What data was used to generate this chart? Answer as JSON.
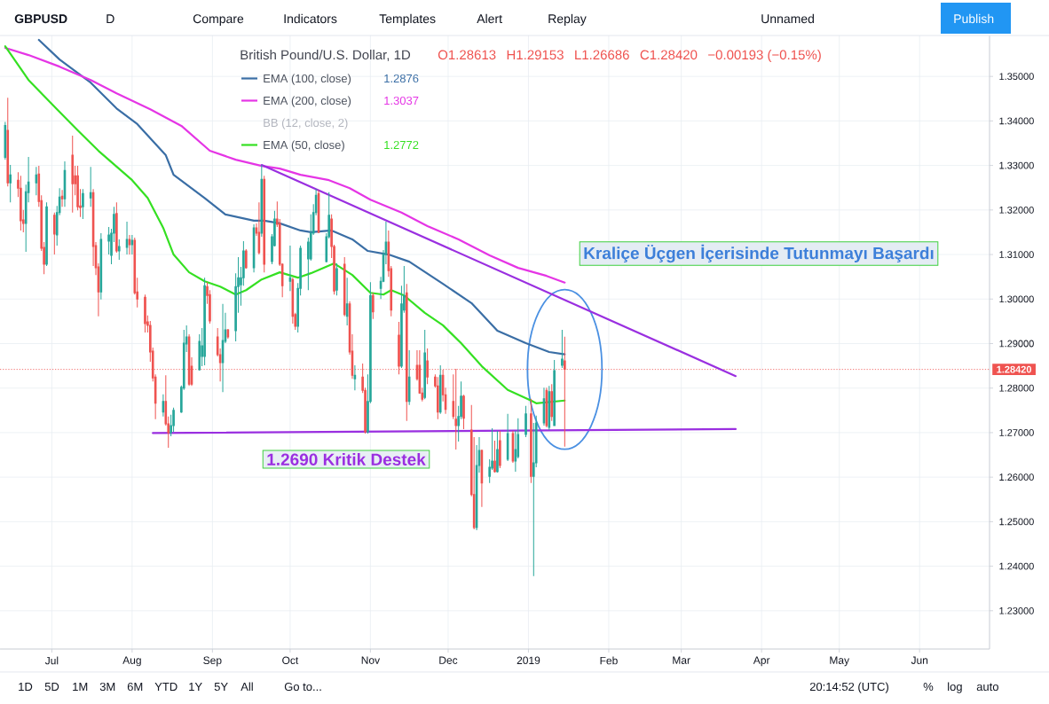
{
  "chart_data": {
    "type": "candlestick",
    "title": "British Pound/U.S. Dollar, 1D",
    "x": [
      "2018-06-13",
      "2018-06-14",
      "2018-06-15",
      "2018-06-18",
      "2018-06-19",
      "2018-06-20",
      "2018-06-21",
      "2018-06-22",
      "2018-06-25",
      "2018-06-26",
      "2018-06-27",
      "2018-06-28",
      "2018-06-29",
      "2018-07-02",
      "2018-07-03",
      "2018-07-04",
      "2018-07-05",
      "2018-07-06",
      "2018-07-09",
      "2018-07-10",
      "2018-07-11",
      "2018-07-12",
      "2018-07-13",
      "2018-07-16",
      "2018-07-17",
      "2018-07-18",
      "2018-07-19",
      "2018-07-20",
      "2018-07-23",
      "2018-07-24",
      "2018-07-25",
      "2018-07-26",
      "2018-07-27",
      "2018-07-30",
      "2018-07-31",
      "2018-08-01",
      "2018-08-02",
      "2018-08-03",
      "2018-08-06",
      "2018-08-07",
      "2018-08-08",
      "2018-08-09",
      "2018-08-10",
      "2018-08-13",
      "2018-08-14",
      "2018-08-15",
      "2018-08-16",
      "2018-08-17",
      "2018-08-20",
      "2018-08-21",
      "2018-08-22",
      "2018-08-23",
      "2018-08-24",
      "2018-08-27",
      "2018-08-28",
      "2018-08-29",
      "2018-08-30",
      "2018-08-31",
      "2018-09-03",
      "2018-09-04",
      "2018-09-05",
      "2018-09-06",
      "2018-09-07",
      "2018-09-10",
      "2018-09-11",
      "2018-09-12",
      "2018-09-13",
      "2018-09-14",
      "2018-09-17",
      "2018-09-18",
      "2018-09-19",
      "2018-09-20",
      "2018-09-21",
      "2018-09-24",
      "2018-09-25",
      "2018-09-26",
      "2018-09-27",
      "2018-09-28",
      "2018-10-01",
      "2018-10-02",
      "2018-10-03",
      "2018-10-04",
      "2018-10-05",
      "2018-10-08",
      "2018-10-09",
      "2018-10-10",
      "2018-10-11",
      "2018-10-12",
      "2018-10-15",
      "2018-10-16",
      "2018-10-17",
      "2018-10-18",
      "2018-10-19",
      "2018-10-22",
      "2018-10-23",
      "2018-10-24",
      "2018-10-25",
      "2018-10-26",
      "2018-10-29",
      "2018-10-30",
      "2018-10-31",
      "2018-11-01",
      "2018-11-02",
      "2018-11-05",
      "2018-11-06",
      "2018-11-07",
      "2018-11-08",
      "2018-11-09",
      "2018-11-12",
      "2018-11-13",
      "2018-11-14",
      "2018-11-15",
      "2018-11-16",
      "2018-11-19",
      "2018-11-20",
      "2018-11-21",
      "2018-11-22",
      "2018-11-23",
      "2018-11-26",
      "2018-11-27",
      "2018-11-28",
      "2018-11-29",
      "2018-11-30",
      "2018-12-03",
      "2018-12-04",
      "2018-12-05",
      "2018-12-06",
      "2018-12-07",
      "2018-12-10",
      "2018-12-11",
      "2018-12-12",
      "2018-12-13",
      "2018-12-14",
      "2018-12-17",
      "2018-12-18",
      "2018-12-19",
      "2018-12-20",
      "2018-12-21",
      "2018-12-24",
      "2018-12-26",
      "2018-12-27",
      "2018-12-28",
      "2018-12-31",
      "2019-01-02",
      "2019-01-03",
      "2019-01-04",
      "2019-01-07",
      "2019-01-08",
      "2019-01-09",
      "2019-01-10",
      "2019-01-11",
      "2019-01-14",
      "2019-01-15"
    ],
    "ohlc": [
      [
        1.3318,
        1.3398,
        1.3313,
        1.339
      ],
      [
        1.3379,
        1.3452,
        1.3253,
        1.3261
      ],
      [
        1.3261,
        1.3301,
        1.3217,
        1.3279
      ],
      [
        1.3267,
        1.3285,
        1.3229,
        1.3249
      ],
      [
        1.3249,
        1.3277,
        1.3154,
        1.3176
      ],
      [
        1.3178,
        1.32,
        1.315,
        1.317
      ],
      [
        1.317,
        1.3257,
        1.3106,
        1.3241
      ],
      [
        1.3239,
        1.3319,
        1.3217,
        1.3263
      ],
      [
        1.3261,
        1.3297,
        1.3233,
        1.3279
      ],
      [
        1.3281,
        1.3299,
        1.3207,
        1.3219
      ],
      [
        1.3221,
        1.3233,
        1.3108,
        1.3114
      ],
      [
        1.3116,
        1.3128,
        1.3056,
        1.3078
      ],
      [
        1.3078,
        1.3217,
        1.3074,
        1.3207
      ],
      [
        1.3188,
        1.3194,
        1.31,
        1.3146
      ],
      [
        1.3144,
        1.3209,
        1.312,
        1.3194
      ],
      [
        1.3194,
        1.3249,
        1.3188,
        1.3229
      ],
      [
        1.3231,
        1.3245,
        1.3207,
        1.3225
      ],
      [
        1.3225,
        1.3309,
        1.3207,
        1.3289
      ],
      [
        1.3323,
        1.3367,
        1.3194,
        1.3259
      ],
      [
        1.3277,
        1.3299,
        1.3233,
        1.3259
      ],
      [
        1.3277,
        1.3299,
        1.3199,
        1.3207
      ],
      [
        1.3209,
        1.3247,
        1.3184,
        1.3205
      ],
      [
        1.3207,
        1.3247,
        1.318,
        1.3237
      ],
      [
        1.3227,
        1.3297,
        1.3207,
        1.3239
      ],
      [
        1.3239,
        1.3247,
        1.3074,
        1.3118
      ],
      [
        1.312,
        1.3128,
        1.3054,
        1.307
      ],
      [
        1.3072,
        1.308,
        1.2961,
        1.3016
      ],
      [
        1.3016,
        1.3148,
        1.2999,
        1.3134
      ],
      [
        1.313,
        1.3162,
        1.31,
        1.3144
      ],
      [
        1.3098,
        1.3158,
        1.3078,
        1.3148
      ],
      [
        1.3148,
        1.3207,
        1.3128,
        1.319
      ],
      [
        1.3192,
        1.3217,
        1.3104,
        1.3108
      ],
      [
        1.3108,
        1.3134,
        1.3088,
        1.3118
      ],
      [
        1.3116,
        1.3174,
        1.31,
        1.3134
      ],
      [
        1.3134,
        1.3144,
        1.31,
        1.3122
      ],
      [
        1.3122,
        1.3144,
        1.31,
        1.3132
      ],
      [
        1.3132,
        1.3138,
        1.301,
        1.3014
      ],
      [
        1.3016,
        1.3048,
        1.2981,
        1.3
      ],
      [
        1.3004,
        1.301,
        1.2925,
        1.2945
      ],
      [
        1.2949,
        1.2963,
        1.2925,
        1.2941
      ],
      [
        1.2941,
        1.2951,
        1.2859,
        1.2881
      ],
      [
        1.2883,
        1.2891,
        1.2815,
        1.2823
      ],
      [
        1.2825,
        1.2831,
        1.273,
        1.2766
      ],
      [
        1.2746,
        1.2786,
        1.2736,
        1.277
      ],
      [
        1.277,
        1.2829,
        1.2716,
        1.272
      ],
      [
        1.272,
        1.2736,
        1.2666,
        1.27
      ],
      [
        1.27,
        1.274,
        1.2692,
        1.2716
      ],
      [
        1.2716,
        1.2756,
        1.2702,
        1.275
      ],
      [
        1.2746,
        1.2806,
        1.2744,
        1.2802
      ],
      [
        1.28,
        1.2931,
        1.2796,
        1.2901
      ],
      [
        1.2899,
        1.2941,
        1.2881,
        1.2915
      ],
      [
        1.2915,
        1.2921,
        1.2805,
        1.2809
      ],
      [
        1.2849,
        1.2869,
        1.2805,
        1.2809
      ],
      [
        1.2841,
        1.2921,
        1.2839,
        1.2905
      ],
      [
        1.2871,
        1.2935,
        1.2849,
        1.2895
      ],
      [
        1.2871,
        1.3048,
        1.2851,
        1.303
      ],
      [
        1.3028,
        1.3038,
        1.2989,
        1.3008
      ],
      [
        1.301,
        1.302,
        1.2945,
        1.2951
      ],
      [
        1.2915,
        1.2935,
        1.2871,
        1.2875
      ],
      [
        1.2875,
        1.2889,
        1.2815,
        1.2857
      ],
      [
        1.2857,
        1.2989,
        1.2791,
        1.2907
      ],
      [
        1.2905,
        1.2969,
        1.2901,
        1.2931
      ],
      [
        1.2931,
        1.2933,
        1.2911,
        1.2915
      ],
      [
        1.2929,
        1.3058,
        1.2905,
        1.3028
      ],
      [
        1.3028,
        1.3094,
        1.2969,
        1.3048
      ],
      [
        1.3032,
        1.3072,
        1.2985,
        1.3048
      ],
      [
        1.3048,
        1.313,
        1.303,
        1.3108
      ],
      [
        1.3108,
        1.3112,
        1.3068,
        1.307
      ],
      [
        1.307,
        1.3168,
        1.306,
        1.316
      ],
      [
        1.316,
        1.317,
        1.3142,
        1.3148
      ],
      [
        1.315,
        1.3217,
        1.31,
        1.3104
      ],
      [
        1.3148,
        1.3301,
        1.314,
        1.3269
      ],
      [
        1.3269,
        1.3277,
        1.306,
        1.3078
      ],
      [
        1.3084,
        1.3146,
        1.3078,
        1.314
      ],
      [
        1.312,
        1.3198,
        1.3118,
        1.318
      ],
      [
        1.318,
        1.3219,
        1.3162,
        1.3168
      ],
      [
        1.317,
        1.318,
        1.3074,
        1.3078
      ],
      [
        1.3078,
        1.308,
        1.3004,
        1.303
      ],
      [
        1.304,
        1.312,
        1.3018,
        1.3048
      ],
      [
        1.3044,
        1.3048,
        1.2945,
        1.2961
      ],
      [
        1.2965,
        1.2969,
        1.2931,
        1.2939
      ],
      [
        1.2939,
        1.3036,
        1.2925,
        1.3024
      ],
      [
        1.3024,
        1.312,
        1.3008,
        1.3114
      ],
      [
        1.309,
        1.3138,
        1.302,
        1.3128
      ],
      [
        1.309,
        1.319,
        1.3086,
        1.3148
      ],
      [
        1.3148,
        1.3213,
        1.3144,
        1.3194
      ],
      [
        1.3194,
        1.3247,
        1.3188,
        1.3233
      ],
      [
        1.3237,
        1.3245,
        1.3148,
        1.315
      ],
      [
        1.3084,
        1.3148,
        1.3082,
        1.314
      ],
      [
        1.314,
        1.324,
        1.3136,
        1.3188
      ],
      [
        1.318,
        1.319,
        1.3092,
        1.3118
      ],
      [
        1.3118,
        1.3122,
        1.301,
        1.3018
      ],
      [
        1.302,
        1.308,
        1.3008,
        1.3068
      ],
      [
        1.3078,
        1.3094,
        1.2961,
        1.2965
      ],
      [
        1.2961,
        1.3048,
        1.2941,
        1.2989
      ],
      [
        1.2989,
        1.2995,
        1.2875,
        1.2881
      ],
      [
        1.2883,
        1.2921,
        1.2821,
        1.2829
      ],
      [
        1.2821,
        1.2851,
        1.2795,
        1.2829
      ],
      [
        1.2825,
        1.2855,
        1.2789,
        1.2795
      ],
      [
        1.2795,
        1.2801,
        1.2698,
        1.2702
      ],
      [
        1.2702,
        1.2831,
        1.2698,
        1.277
      ],
      [
        1.277,
        1.3038,
        1.2766,
        1.3008
      ],
      [
        1.3008,
        1.3014,
        1.2955,
        1.2971
      ],
      [
        1.3024,
        1.305,
        1.3,
        1.304
      ],
      [
        1.304,
        1.311,
        1.3038,
        1.31
      ],
      [
        1.31,
        1.3174,
        1.3078,
        1.3128
      ],
      [
        1.3128,
        1.3154,
        1.305,
        1.3064
      ],
      [
        1.3068,
        1.3074,
        1.2961,
        1.2975
      ],
      [
        1.2919,
        1.2949,
        1.2831,
        1.2849
      ],
      [
        1.2849,
        1.303,
        1.2845,
        1.2989
      ],
      [
        1.2975,
        1.3074,
        1.2969,
        1.3008
      ],
      [
        1.3014,
        1.3034,
        1.2726,
        1.277
      ],
      [
        1.277,
        1.2885,
        1.2762,
        1.2825
      ],
      [
        1.2851,
        1.2885,
        1.2817,
        1.2821
      ],
      [
        1.2851,
        1.2885,
        1.2787,
        1.2789
      ],
      [
        1.2789,
        1.2801,
        1.277,
        1.2775
      ],
      [
        1.2779,
        1.2931,
        1.2775,
        1.2879
      ],
      [
        1.2861,
        1.2889,
        1.2809,
        1.2825
      ],
      [
        1.2825,
        1.2831,
        1.2801,
        1.2805
      ],
      [
        1.2805,
        1.2825,
        1.273,
        1.2746
      ],
      [
        1.2746,
        1.2851,
        1.2742,
        1.2829
      ],
      [
        1.2829,
        1.2841,
        1.277,
        1.2785
      ],
      [
        1.2785,
        1.2801,
        1.2742,
        1.2752
      ],
      [
        1.277,
        1.2831,
        1.273,
        1.2736
      ],
      [
        1.273,
        1.2843,
        1.2662,
        1.2716
      ],
      [
        1.2716,
        1.276,
        1.268,
        1.2736
      ],
      [
        1.2736,
        1.2815,
        1.273,
        1.2782
      ],
      [
        1.2782,
        1.2785,
        1.2708,
        1.2732
      ],
      [
        1.2706,
        1.2762,
        1.2557,
        1.2561
      ],
      [
        1.2561,
        1.269,
        1.2483,
        1.2487
      ],
      [
        1.2487,
        1.2672,
        1.2481,
        1.2626
      ],
      [
        1.2626,
        1.269,
        1.261,
        1.266
      ],
      [
        1.266,
        1.2662,
        1.2533,
        1.2587
      ],
      [
        1.2602,
        1.264,
        1.2587,
        1.2622
      ],
      [
        1.262,
        1.271,
        1.2616,
        1.2636
      ],
      [
        1.2636,
        1.2682,
        1.261,
        1.2612
      ],
      [
        1.2612,
        1.2704,
        1.261,
        1.2662
      ],
      [
        1.2682,
        1.2704,
        1.262,
        1.2626
      ],
      [
        1.264,
        1.2742,
        1.2636,
        1.2698
      ],
      [
        1.2698,
        1.2704,
        1.2632,
        1.2636
      ],
      [
        1.2636,
        1.2704,
        1.2612,
        1.2662
      ],
      [
        1.2646,
        1.2732,
        1.2642,
        1.2696
      ],
      [
        1.2696,
        1.276,
        1.269,
        1.2742
      ],
      [
        1.2742,
        1.2776,
        1.2587,
        1.2602
      ],
      [
        1.2602,
        1.2722,
        1.2378,
        1.2632
      ],
      [
        1.2632,
        1.2738,
        1.2622,
        1.2722
      ],
      [
        1.2722,
        1.2801,
        1.2716,
        1.2776
      ],
      [
        1.2795,
        1.2801,
        1.2712,
        1.2716
      ],
      [
        1.2712,
        1.2805,
        1.2706,
        1.2792
      ],
      [
        1.2792,
        1.2809,
        1.2726,
        1.2736
      ],
      [
        1.2716,
        1.2863,
        1.2716,
        1.2839
      ],
      [
        1.2851,
        1.2931,
        1.2845,
        1.2865
      ],
      [
        1.28613,
        1.29153,
        1.26686,
        1.2842
      ]
    ],
    "colors": [
      "#26a69a",
      "#ef5350",
      "#26a69a",
      "#ef5350",
      "#ef5350",
      "#ef5350",
      "#26a69a",
      "#26a69a",
      "#26a69a",
      "#ef5350",
      "#ef5350",
      "#ef5350",
      "#26a69a",
      "#ef5350",
      "#26a69a",
      "#26a69a",
      "#ef5350",
      "#26a69a",
      "#ef5350",
      "#ef5350",
      "#ef5350",
      "#ef5350",
      "#26a69a",
      "#26a69a",
      "#ef5350",
      "#ef5350",
      "#ef5350",
      "#26a69a",
      "#26a69a",
      "#26a69a",
      "#26a69a",
      "#ef5350",
      "#26a69a",
      "#26a69a",
      "#ef5350",
      "#26a69a",
      "#ef5350",
      "#ef5350",
      "#ef5350",
      "#ef5350",
      "#ef5350",
      "#ef5350",
      "#ef5350",
      "#26a69a",
      "#ef5350",
      "#ef5350",
      "#26a69a",
      "#26a69a",
      "#26a69a",
      "#26a69a",
      "#26a69a",
      "#ef5350",
      "#ef5350",
      "#26a69a",
      "#26a69a",
      "#26a69a",
      "#ef5350",
      "#ef5350",
      "#ef5350",
      "#ef5350",
      "#26a69a",
      "#26a69a",
      "#ef5350",
      "#26a69a",
      "#26a69a",
      "#26a69a",
      "#26a69a",
      "#ef5350",
      "#26a69a",
      "#ef5350",
      "#ef5350",
      "#26a69a",
      "#ef5350",
      "#26a69a",
      "#26a69a",
      "#ef5350",
      "#ef5350",
      "#ef5350",
      "#26a69a",
      "#ef5350",
      "#ef5350",
      "#26a69a",
      "#26a69a",
      "#26a69a",
      "#26a69a",
      "#26a69a",
      "#26a69a",
      "#ef5350",
      "#26a69a",
      "#26a69a",
      "#ef5350",
      "#ef5350",
      "#26a69a",
      "#ef5350",
      "#26a69a",
      "#ef5350",
      "#ef5350",
      "#26a69a",
      "#ef5350",
      "#ef5350",
      "#26a69a",
      "#26a69a",
      "#ef5350",
      "#26a69a",
      "#26a69a",
      "#26a69a",
      "#ef5350",
      "#ef5350",
      "#ef5350",
      "#26a69a",
      "#26a69a",
      "#ef5350",
      "#26a69a",
      "#ef5350",
      "#ef5350",
      "#ef5350",
      "#26a69a",
      "#ef5350",
      "#ef5350",
      "#ef5350",
      "#26a69a",
      "#ef5350",
      "#ef5350",
      "#ef5350",
      "#ef5350",
      "#26a69a",
      "#26a69a",
      "#ef5350",
      "#ef5350",
      "#ef5350",
      "#26a69a",
      "#26a69a",
      "#ef5350",
      "#26a69a",
      "#26a69a",
      "#ef5350",
      "#26a69a",
      "#ef5350",
      "#26a69a",
      "#ef5350",
      "#26a69a",
      "#26a69a",
      "#26a69a",
      "#ef5350",
      "#26a69a",
      "#26a69a",
      "#26a69a",
      "#ef5350",
      "#26a69a",
      "#ef5350",
      "#26a69a",
      "#26a69a",
      "#ef5350"
    ],
    "series": [
      {
        "name": "EMA (100, close)",
        "type": "line",
        "color": "#3a6ea5",
        "x": [
          "2018-06-26",
          "2018-07-04",
          "2018-07-16",
          "2018-07-26",
          "2018-08-03",
          "2018-08-14",
          "2018-08-17",
          "2018-08-29",
          "2018-09-06",
          "2018-09-17",
          "2018-09-21",
          "2018-09-27",
          "2018-10-05",
          "2018-10-09",
          "2018-10-17",
          "2018-10-25",
          "2018-10-31",
          "2018-11-08",
          "2018-11-16",
          "2018-11-29",
          "2018-12-10",
          "2018-12-20",
          "2018-12-31",
          "2019-01-09",
          "2019-01-15"
        ],
        "values": [
          1.3582,
          1.3538,
          1.3486,
          1.3428,
          1.3393,
          1.3323,
          1.3279,
          1.3227,
          1.319,
          1.3176,
          1.3176,
          1.317,
          1.3154,
          1.315,
          1.3154,
          1.3134,
          1.3108,
          1.31,
          1.3084,
          1.3034,
          1.2991,
          1.2929,
          1.2901,
          1.2881,
          1.2876
        ]
      },
      {
        "name": "EMA (200, close)",
        "type": "line",
        "color": "#e535e5",
        "x": [
          "2018-06-13",
          "2018-06-22",
          "2018-07-04",
          "2018-07-16",
          "2018-07-26",
          "2018-08-08",
          "2018-08-20",
          "2018-08-31",
          "2018-09-10",
          "2018-09-20",
          "2018-09-27",
          "2018-10-05",
          "2018-10-16",
          "2018-10-24",
          "2018-11-01",
          "2018-11-13",
          "2018-11-23",
          "2018-12-05",
          "2018-12-17",
          "2018-12-28",
          "2019-01-08",
          "2019-01-15"
        ],
        "values": [
          1.3564,
          1.3548,
          1.3522,
          1.3492,
          1.3462,
          1.3426,
          1.3389,
          1.3333,
          1.3313,
          1.3299,
          1.3293,
          1.3279,
          1.3267,
          1.3249,
          1.3223,
          1.3194,
          1.3164,
          1.3134,
          1.3098,
          1.307,
          1.3052,
          1.3037
        ]
      },
      {
        "name": "EMA (50, close)",
        "type": "line",
        "color": "#35e022",
        "x": [
          "2018-06-13",
          "2018-06-22",
          "2018-07-03",
          "2018-07-11",
          "2018-07-19",
          "2018-08-01",
          "2018-08-07",
          "2018-08-13",
          "2018-08-17",
          "2018-08-23",
          "2018-08-29",
          "2018-09-04",
          "2018-09-10",
          "2018-09-14",
          "2018-09-20",
          "2018-09-27",
          "2018-10-04",
          "2018-10-09",
          "2018-10-18",
          "2018-10-25",
          "2018-11-01",
          "2018-11-06",
          "2018-11-09",
          "2018-11-14",
          "2018-11-22",
          "2018-11-29",
          "2018-12-06",
          "2018-12-14",
          "2018-12-24",
          "2019-01-02",
          "2019-01-04",
          "2019-01-15"
        ],
        "values": [
          1.3568,
          1.3492,
          1.3426,
          1.3379,
          1.3333,
          1.3267,
          1.3227,
          1.316,
          1.31,
          1.306,
          1.304,
          1.3028,
          1.301,
          1.302,
          1.3044,
          1.306,
          1.3048,
          1.3058,
          1.308,
          1.3054,
          1.3014,
          1.301,
          1.302,
          1.3008,
          1.2969,
          1.2941,
          1.2901,
          1.2849,
          1.2796,
          1.2772,
          1.2766,
          1.2772
        ]
      },
      {
        "type": "line",
        "color": "#9a2fe0",
        "x": [
          "2018-09-20",
          "2019-03-22"
        ],
        "values": [
          1.3301,
          1.2827
        ]
      },
      {
        "type": "line",
        "color": "#9a2fe0",
        "x": [
          "2018-08-09",
          "2019-03-22"
        ],
        "values": [
          1.2699,
          1.2708
        ]
      }
    ],
    "xlim": [
      "2018-06-11",
      "2019-06-28"
    ],
    "xticks": [
      {
        "value": "2018-07-01",
        "label": "Jul"
      },
      {
        "value": "2018-08-01",
        "label": "Aug"
      },
      {
        "value": "2018-09-01",
        "label": "Sep"
      },
      {
        "value": "2018-10-01",
        "label": "Oct"
      },
      {
        "value": "2018-11-01",
        "label": "Nov"
      },
      {
        "value": "2018-12-01",
        "label": "Dec"
      },
      {
        "value": "2019-01-01",
        "label": "2019"
      },
      {
        "value": "2019-02-01",
        "label": "Feb"
      },
      {
        "value": "2019-03-01",
        "label": "Mar"
      },
      {
        "value": "2019-04-01",
        "label": "Apr"
      },
      {
        "value": "2019-05-01",
        "label": "May"
      },
      {
        "value": "2019-06-01",
        "label": "Jun"
      }
    ],
    "ylim": [
      1.2214,
      1.3592
    ],
    "yticks": [
      {
        "value": 1.23,
        "label": "1.23000"
      },
      {
        "value": 1.24,
        "label": "1.24000"
      },
      {
        "value": 1.25,
        "label": "1.25000"
      },
      {
        "value": 1.26,
        "label": "1.26000"
      },
      {
        "value": 1.27,
        "label": "1.27000"
      },
      {
        "value": 1.28,
        "label": "1.28000"
      },
      {
        "value": 1.29,
        "label": "1.29000"
      },
      {
        "value": 1.3,
        "label": "1.30000"
      },
      {
        "value": 1.31,
        "label": "1.31000"
      },
      {
        "value": 1.32,
        "label": "1.32000"
      },
      {
        "value": 1.33,
        "label": "1.33000"
      },
      {
        "value": 1.34,
        "label": "1.34000"
      },
      {
        "value": 1.35,
        "label": "1.35000"
      }
    ],
    "ref_lines": [
      {
        "axis": "y",
        "value": 1.2842,
        "label": "1.28420",
        "color": "#ef5350",
        "line_style": "dotted"
      }
    ],
    "grid": true,
    "legend": "top left",
    "annotations": [
      "O1.28613",
      "H1.29153",
      "L1.26686",
      "C1.28420",
      "−0.00193 (−0.15%)",
      "1.2876",
      "1.3037",
      "BB (12, close, 2)",
      "1.2772",
      "Kraliçe Üçgen İçerisinde Tutunmayı Başardı",
      "1.2690 Kritik Destek",
      "GBPUSD",
      "D",
      "Compare",
      "Indicators",
      "Templates",
      "Alert",
      "Replay",
      "Unnamed",
      "Publish",
      "1D",
      "5D",
      "1M",
      "3M",
      "6M",
      "YTD",
      "1Y",
      "5Y",
      "All",
      "Go to...",
      "20:14:52 (UTC)",
      "%",
      "log",
      "auto"
    ]
  }
}
